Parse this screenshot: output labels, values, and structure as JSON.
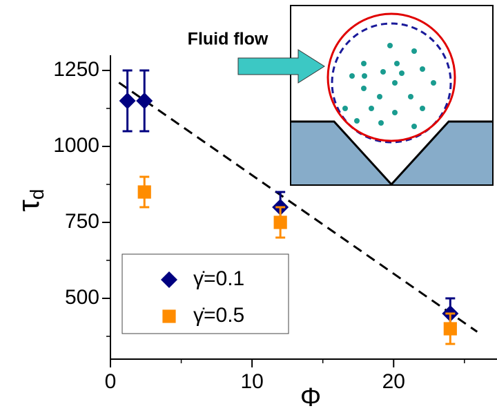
{
  "chart_data": {
    "type": "scatter",
    "x_label": "Φ",
    "y_label": {
      "symbol": "τ",
      "subscript": "d"
    },
    "annotation": "Fluid flow",
    "xlim": [
      0,
      27.3
    ],
    "ylim": [
      300,
      1300
    ],
    "xticks": [
      0,
      10,
      20
    ],
    "yticks": [
      500,
      750,
      1000,
      1250
    ],
    "xminor": [
      5,
      15,
      25
    ],
    "yminor": [
      375,
      625,
      875,
      1125
    ],
    "legend": "lower-left",
    "series": [
      {
        "name": "γ̇=0.1",
        "color": "#000080",
        "marker": "diamond",
        "x": [
          1.2,
          2.4,
          12,
          24
        ],
        "values": [
          1150,
          1150,
          800,
          450
        ],
        "errors": [
          100,
          100,
          50,
          50
        ]
      },
      {
        "name": "γ̇=0.5",
        "color": "#ff8c00",
        "marker": "square",
        "x": [
          2.4,
          12,
          24
        ],
        "values": [
          850,
          750,
          400
        ],
        "errors": [
          50,
          50,
          50
        ]
      }
    ],
    "fit_line": {
      "x": [
        0.6,
        25.9
      ],
      "values": [
        1210,
        390
      ],
      "color": "#000000"
    }
  }
}
